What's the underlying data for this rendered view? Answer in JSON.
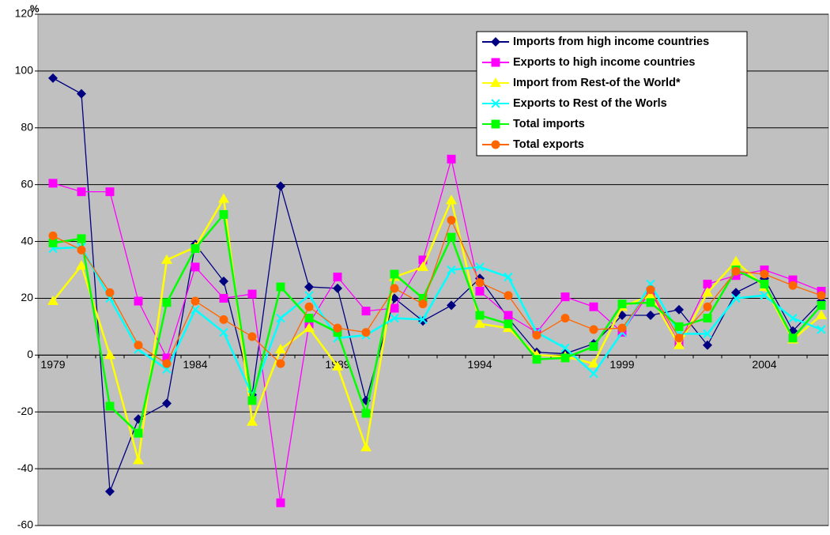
{
  "chart_data": {
    "type": "line",
    "y_label": "%",
    "categories": [
      "1979",
      null,
      null,
      null,
      null,
      "1984",
      null,
      null,
      null,
      null,
      "1989",
      null,
      null,
      null,
      null,
      "1994",
      null,
      null,
      null,
      null,
      "1999",
      null,
      null,
      null,
      null,
      "2004",
      null,
      null
    ],
    "ylim": [
      -60,
      120
    ],
    "yticks": [
      -60,
      -40,
      -20,
      0,
      20,
      40,
      60,
      80,
      100,
      120
    ],
    "grid": true,
    "series": [
      {
        "name": "Imports from high income countries",
        "color": "#000080",
        "marker": "diamond",
        "values": [
          97.5,
          92,
          -48,
          -22.5,
          -17,
          39,
          26,
          -14,
          59.5,
          24,
          23.5,
          -16,
          20,
          12,
          17.5,
          27,
          13,
          1,
          0.5,
          4,
          14,
          14,
          16,
          3.5,
          22,
          27,
          8.5,
          19
        ]
      },
      {
        "name": "Exports to high income countries",
        "color": "#ff00ff",
        "marker": "square",
        "values": [
          60.5,
          57.5,
          57.5,
          19,
          -1,
          31,
          20,
          21.5,
          -52,
          11,
          27.5,
          15.5,
          16.5,
          33.5,
          69,
          22.5,
          14,
          8,
          20.5,
          17,
          8,
          22.5,
          4,
          25,
          28,
          30,
          26.5,
          22.5
        ]
      },
      {
        "name": "Import from Rest-of the World*",
        "color": "#ffff00",
        "marker": "triangle",
        "values": [
          19,
          31.5,
          0,
          -37,
          33.5,
          38,
          55,
          -23.5,
          2,
          9.5,
          -4,
          -32.5,
          27.5,
          31,
          54.5,
          11,
          9.5,
          0,
          -0.5,
          -3,
          17,
          21,
          3.5,
          22,
          33,
          24,
          5.5,
          14
        ]
      },
      {
        "name": "Exports to Rest of the Worls",
        "color": "#00ffff",
        "marker": "x",
        "values": [
          37.5,
          38,
          20,
          2,
          -5,
          16,
          8,
          -14,
          13,
          21,
          6,
          7,
          13,
          12.5,
          30,
          31,
          27.5,
          8,
          2.5,
          -6.5,
          8,
          25,
          7.5,
          7.5,
          20,
          21,
          13,
          9
        ]
      },
      {
        "name": "Total imports",
        "color": "#00ff00",
        "marker": "square",
        "values": [
          39.5,
          41,
          -18,
          -27.5,
          18.5,
          37.5,
          49.5,
          -16,
          24,
          13,
          8,
          -20.5,
          28.5,
          20,
          41.5,
          14,
          11,
          -1.5,
          -1,
          3,
          18,
          18.5,
          10,
          13,
          30,
          25,
          6,
          17.5
        ]
      },
      {
        "name": "Total exports",
        "color": "#ff6600",
        "marker": "circle",
        "values": [
          42,
          37,
          22,
          3.5,
          -3,
          19,
          12.5,
          6.5,
          -3,
          17,
          9.5,
          8,
          23.5,
          18,
          47.5,
          25.5,
          21,
          7,
          13,
          9,
          9.5,
          23,
          6,
          17,
          29.5,
          28.5,
          24.5,
          21
        ]
      }
    ]
  }
}
